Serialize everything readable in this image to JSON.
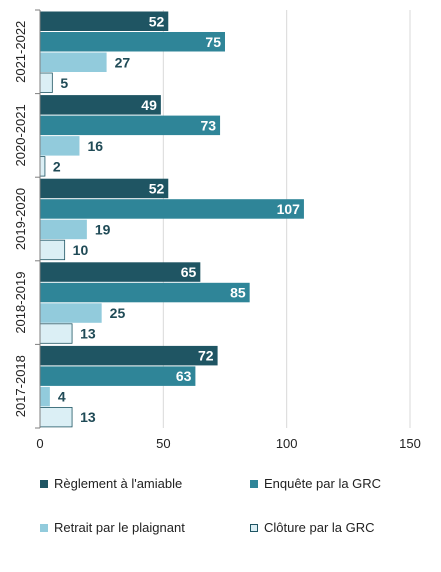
{
  "chart_data": {
    "type": "bar",
    "orientation": "horizontal",
    "categories": [
      "2021-2022",
      "2020-2021",
      "2019-2020",
      "2018-2019",
      "2017-2018"
    ],
    "series": [
      {
        "name": "Règlement à l'amiable",
        "color": "#1f5563",
        "values": [
          52,
          49,
          52,
          65,
          72
        ]
      },
      {
        "name": "Enquête par la GRC",
        "color": "#2f8598",
        "values": [
          75,
          73,
          107,
          85,
          63
        ]
      },
      {
        "name": "Retrait par le plaignant",
        "color": "#92cbdc",
        "values": [
          27,
          16,
          19,
          25,
          4
        ]
      },
      {
        "name": "Clôture par la GRC",
        "color": "#dbeff5",
        "values": [
          5,
          2,
          10,
          13,
          13
        ]
      }
    ],
    "xlim": [
      0,
      150
    ],
    "xticks": [
      0,
      50,
      100,
      150
    ],
    "grid": true,
    "legend_position": "bottom",
    "title": "",
    "xlabel": "",
    "ylabel": ""
  }
}
